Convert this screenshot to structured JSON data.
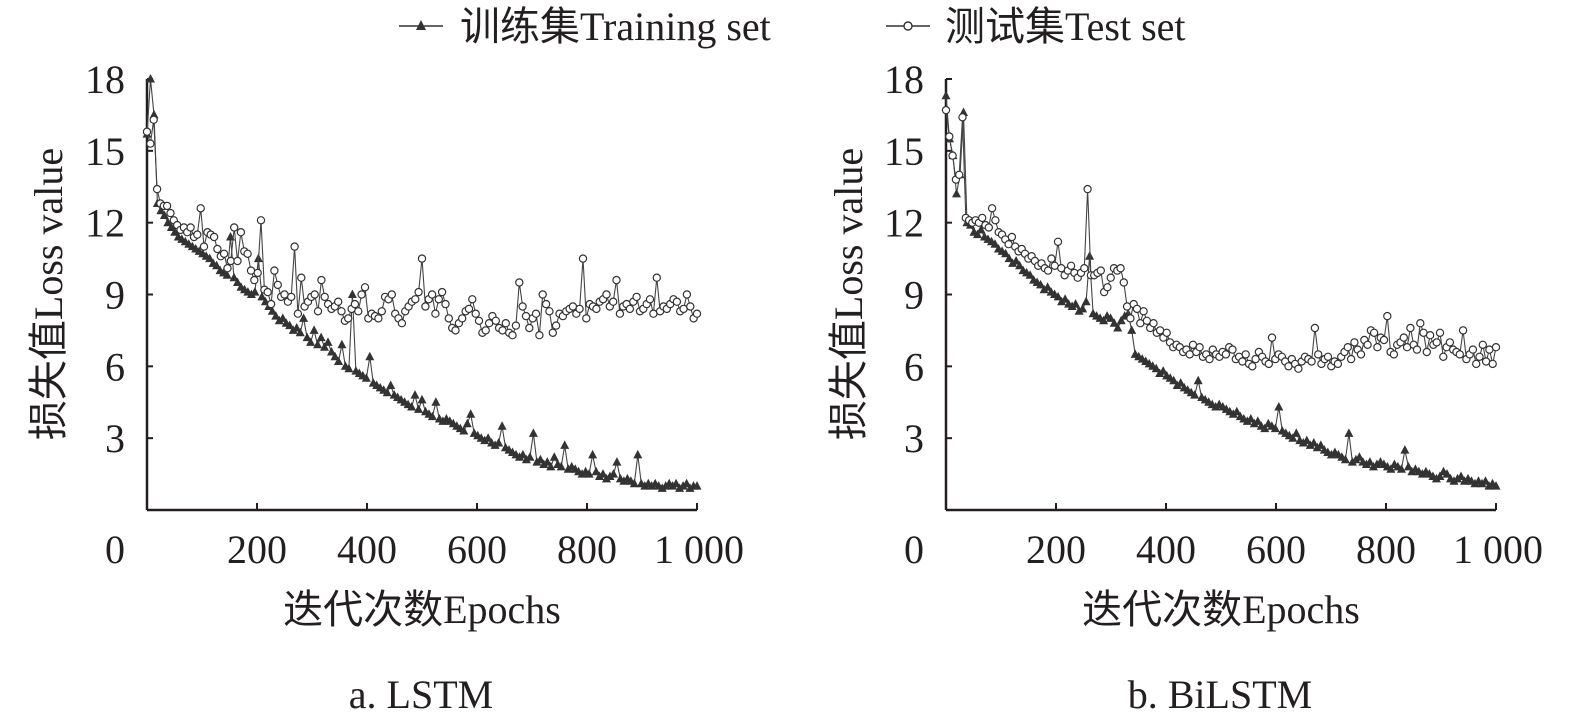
{
  "legend": {
    "training_label": "训练集Training set",
    "test_label": "测试集Test set",
    "training_marker": "filled-triangle",
    "test_marker": "open-circle"
  },
  "colors": {
    "ink": "#231f20",
    "line": "#555555",
    "marker_fill": "#333333"
  },
  "chart_data": [
    {
      "type": "line",
      "caption": "a. LSTM",
      "xlabel": "迭代次数Epochs",
      "ylabel": "损失值Loss value",
      "xlim": [
        0,
        1000
      ],
      "ylim": [
        0,
        18
      ],
      "xticks": [
        0,
        200,
        400,
        600,
        800,
        1000
      ],
      "xtick_labels": [
        "0",
        "200",
        "400",
        "600",
        "800",
        "1 000"
      ],
      "yticks": [
        3,
        6,
        9,
        12,
        15,
        18
      ],
      "ytick_labels": [
        "3",
        "6",
        "9",
        "12",
        "15",
        "18"
      ],
      "grid": false,
      "legend_position": "top-center",
      "series": [
        {
          "name": "训练集Training set",
          "x_step": 6,
          "values": [
            15.7,
            18,
            16.5,
            12.8,
            12.5,
            12.3,
            12.0,
            11.8,
            11.6,
            11.4,
            11.3,
            11.2,
            11.1,
            11.0,
            10.9,
            10.8,
            10.7,
            10.6,
            10.5,
            10.3,
            10.2,
            10.0,
            9.9,
            9.8,
            11.4,
            9.7,
            9.5,
            9.3,
            9.2,
            9.1,
            9.0,
            9.1,
            10.5,
            8.9,
            8.7,
            8.5,
            8.3,
            8.1,
            7.9,
            8.0,
            7.8,
            7.7,
            7.5,
            7.6,
            7.4,
            8.0,
            7.2,
            7.0,
            7.5,
            6.9,
            7.2,
            6.8,
            7.0,
            6.6,
            6.4,
            6.2,
            6.9,
            6.0,
            5.9,
            9.0,
            5.8,
            5.7,
            5.6,
            5.5,
            6.4,
            5.3,
            5.2,
            5.1,
            5.0,
            4.9,
            5.2,
            4.8,
            4.7,
            4.6,
            4.5,
            4.4,
            4.3,
            4.8,
            4.2,
            4.6,
            4.1,
            4.0,
            3.9,
            4.5,
            3.8,
            3.7,
            3.8,
            3.7,
            3.6,
            3.5,
            3.4,
            3.3,
            3.6,
            4.0,
            3.2,
            3.1,
            3.0,
            2.9,
            3.0,
            2.8,
            2.7,
            2.8,
            3.5,
            2.6,
            2.5,
            2.4,
            2.3,
            2.2,
            2.3,
            2.1,
            2.2,
            3.2,
            2.0,
            2.1,
            1.9,
            2.0,
            1.8,
            2.2,
            1.9,
            1.8,
            2.7,
            1.7,
            1.8,
            1.7,
            1.6,
            1.5,
            1.6,
            1.5,
            2.3,
            1.6,
            1.4,
            1.5,
            1.3,
            1.4,
            1.5,
            2.0,
            1.3,
            1.2,
            1.3,
            1.2,
            1.1,
            2.3,
            1.1,
            1.0,
            1.1,
            1.0,
            1.1,
            1.0,
            0.9,
            1.0,
            1.1,
            1.0,
            1.1,
            0.9,
            1.0,
            1.1,
            0.9,
            1.0,
            1.0
          ]
        },
        {
          "name": "测试集Test set",
          "x_step": 6,
          "values": [
            15.8,
            15.3,
            16.3,
            13.4,
            12.8,
            12.7,
            12.7,
            12.4,
            12.1,
            11.9,
            11.7,
            11.8,
            11.6,
            11.8,
            11.4,
            11.5,
            12.6,
            11.0,
            11.6,
            11.5,
            11.4,
            10.9,
            10.6,
            10.7,
            10.1,
            10.4,
            11.8,
            10.4,
            11.6,
            10.8,
            10.7,
            10.0,
            9.6,
            9.9,
            12.1,
            9.2,
            9.1,
            8.6,
            10.0,
            9.4,
            8.9,
            9.0,
            8.7,
            8.9,
            11.0,
            8.2,
            9.7,
            8.5,
            8.7,
            8.9,
            9.0,
            8.3,
            9.6,
            8.9,
            8.6,
            8.4,
            8.5,
            8.7,
            8.3,
            7.9,
            8.0,
            8.4,
            8.6,
            8.3,
            9.0,
            9.3,
            8.0,
            8.2,
            8.1,
            8.0,
            8.3,
            8.9,
            8.8,
            9.0,
            8.2,
            8.0,
            7.8,
            8.3,
            8.5,
            8.7,
            8.8,
            9.1,
            10.5,
            8.5,
            8.8,
            9.0,
            8.2,
            8.8,
            9.1,
            8.6,
            8.0,
            7.6,
            7.5,
            7.8,
            8.0,
            8.3,
            8.4,
            8.8,
            8.2,
            7.9,
            7.4,
            7.5,
            7.8,
            8.1,
            7.9,
            7.6,
            7.5,
            7.8,
            7.4,
            7.3,
            7.7,
            9.5,
            8.5,
            8.1,
            7.6,
            8.0,
            8.2,
            7.3,
            9.0,
            8.6,
            8.3,
            7.4,
            7.7,
            8.2,
            8.1,
            8.3,
            8.4,
            8.5,
            8.2,
            8.4,
            10.5,
            8.0,
            8.6,
            8.5,
            8.4,
            8.7,
            8.8,
            9.0,
            8.5,
            8.7,
            9.6,
            8.2,
            8.5,
            8.6,
            8.4,
            8.7,
            8.9,
            8.3,
            8.4,
            8.6,
            8.8,
            8.2,
            9.7,
            8.3,
            8.5,
            8.4,
            8.6,
            8.8,
            8.7,
            8.3,
            8.4,
            9.0,
            8.5,
            8.0,
            8.2
          ]
        }
      ]
    },
    {
      "type": "line",
      "caption": "b. BiLSTM",
      "xlabel": "迭代次数Epochs",
      "ylabel": "损失值Loss value",
      "xlim": [
        0,
        1000
      ],
      "ylim": [
        0,
        18
      ],
      "xticks": [
        0,
        200,
        400,
        600,
        800,
        1000
      ],
      "xtick_labels": [
        "0",
        "200",
        "400",
        "600",
        "800",
        "1 000"
      ],
      "yticks": [
        3,
        6,
        9,
        12,
        15,
        18
      ],
      "ytick_labels": [
        "3",
        "6",
        "9",
        "12",
        "15",
        "18"
      ],
      "grid": false,
      "legend_position": "top-center",
      "series": [
        {
          "name": "训练集Training set",
          "x_step": 6,
          "values": [
            17.3,
            15.5,
            14.8,
            13.2,
            14.0,
            16.6,
            12.0,
            11.9,
            11.6,
            11.5,
            11.7,
            11.4,
            11.3,
            11.2,
            11.1,
            10.9,
            10.8,
            10.7,
            10.5,
            10.3,
            10.4,
            10.2,
            10.0,
            9.9,
            9.8,
            9.6,
            9.5,
            9.4,
            9.2,
            9.3,
            9.1,
            9.0,
            8.9,
            8.7,
            8.8,
            8.6,
            8.5,
            8.6,
            8.3,
            8.4,
            8.7,
            10.6,
            8.2,
            8.1,
            8.0,
            7.9,
            8.1,
            8.0,
            7.8,
            7.6,
            7.9,
            8.1,
            8.2,
            7.5,
            6.5,
            6.4,
            6.3,
            6.2,
            6.1,
            6.0,
            5.9,
            5.7,
            5.8,
            5.6,
            5.5,
            5.4,
            5.2,
            5.3,
            5.1,
            5.0,
            4.9,
            4.8,
            5.4,
            4.7,
            4.6,
            4.5,
            4.4,
            4.3,
            4.4,
            4.3,
            4.2,
            4.1,
            4.0,
            4.1,
            3.9,
            3.8,
            3.7,
            3.8,
            3.6,
            3.7,
            3.5,
            3.4,
            3.6,
            3.5,
            3.4,
            4.3,
            3.3,
            3.2,
            3.1,
            3.0,
            3.2,
            2.9,
            2.8,
            2.9,
            2.7,
            2.8,
            2.6,
            2.7,
            2.5,
            2.4,
            2.3,
            2.4,
            2.3,
            2.2,
            2.1,
            3.2,
            2.0,
            2.1,
            2.2,
            2.0,
            1.9,
            2.0,
            1.8,
            1.9,
            2.0,
            1.9,
            1.8,
            1.7,
            1.9,
            1.8,
            1.7,
            2.5,
            1.8,
            1.6,
            1.7,
            1.6,
            1.5,
            1.6,
            1.5,
            1.4,
            1.3,
            1.4,
            1.6,
            1.5,
            1.3,
            1.2,
            1.3,
            1.4,
            1.2,
            1.3,
            1.2,
            1.1,
            1.2,
            1.1,
            1.2,
            1.0,
            1.1,
            1.0
          ]
        },
        {
          "name": "测试集Test set",
          "x_step": 6,
          "values": [
            16.7,
            15.6,
            14.8,
            13.8,
            14.0,
            16.4,
            12.2,
            12.1,
            12.0,
            12.1,
            12.0,
            12.2,
            11.9,
            11.8,
            12.6,
            12.1,
            11.6,
            11.5,
            11.3,
            11.1,
            11.4,
            11.0,
            10.8,
            10.9,
            10.7,
            10.5,
            10.6,
            10.4,
            10.2,
            10.3,
            10.1,
            10.0,
            10.5,
            10.2,
            11.2,
            10.1,
            9.8,
            10.0,
            10.2,
            9.9,
            9.7,
            9.9,
            10.1,
            13.4,
            9.8,
            9.8,
            9.9,
            10.0,
            9.1,
            9.3,
            9.7,
            10.1,
            10.0,
            10.1,
            9.5,
            8.5,
            8.0,
            8.6,
            8.4,
            7.8,
            8.3,
            7.9,
            7.6,
            7.8,
            7.4,
            7.5,
            7.2,
            7.4,
            7.0,
            6.8,
            6.9,
            6.8,
            6.6,
            6.7,
            6.5,
            6.9,
            6.6,
            6.8,
            6.4,
            6.5,
            6.3,
            6.7,
            6.5,
            6.4,
            6.6,
            6.5,
            6.8,
            6.7,
            6.3,
            6.4,
            6.2,
            6.5,
            6.1,
            6.0,
            6.3,
            6.6,
            6.4,
            6.2,
            6.1,
            7.2,
            6.3,
            6.5,
            6.4,
            6.2,
            6.0,
            6.3,
            6.1,
            5.9,
            6.2,
            6.4,
            6.3,
            6.2,
            7.6,
            6.5,
            6.1,
            6.3,
            6.4,
            6.0,
            6.2,
            6.1,
            6.4,
            6.6,
            6.8,
            6.3,
            7.0,
            6.7,
            6.5,
            7.1,
            6.9,
            7.5,
            7.4,
            6.8,
            7.2,
            7.1,
            8.1,
            6.6,
            6.5,
            6.9,
            7.0,
            7.2,
            6.8,
            7.6,
            6.9,
            6.7,
            7.8,
            7.4,
            6.6,
            7.3,
            6.9,
            7.0,
            7.4,
            6.4,
            6.8,
            7.0,
            6.7,
            6.6,
            6.5,
            7.5,
            6.3,
            6.5,
            6.7,
            6.1,
            6.4,
            6.9,
            6.2,
            6.7,
            6.1,
            6.8
          ]
        }
      ]
    }
  ]
}
